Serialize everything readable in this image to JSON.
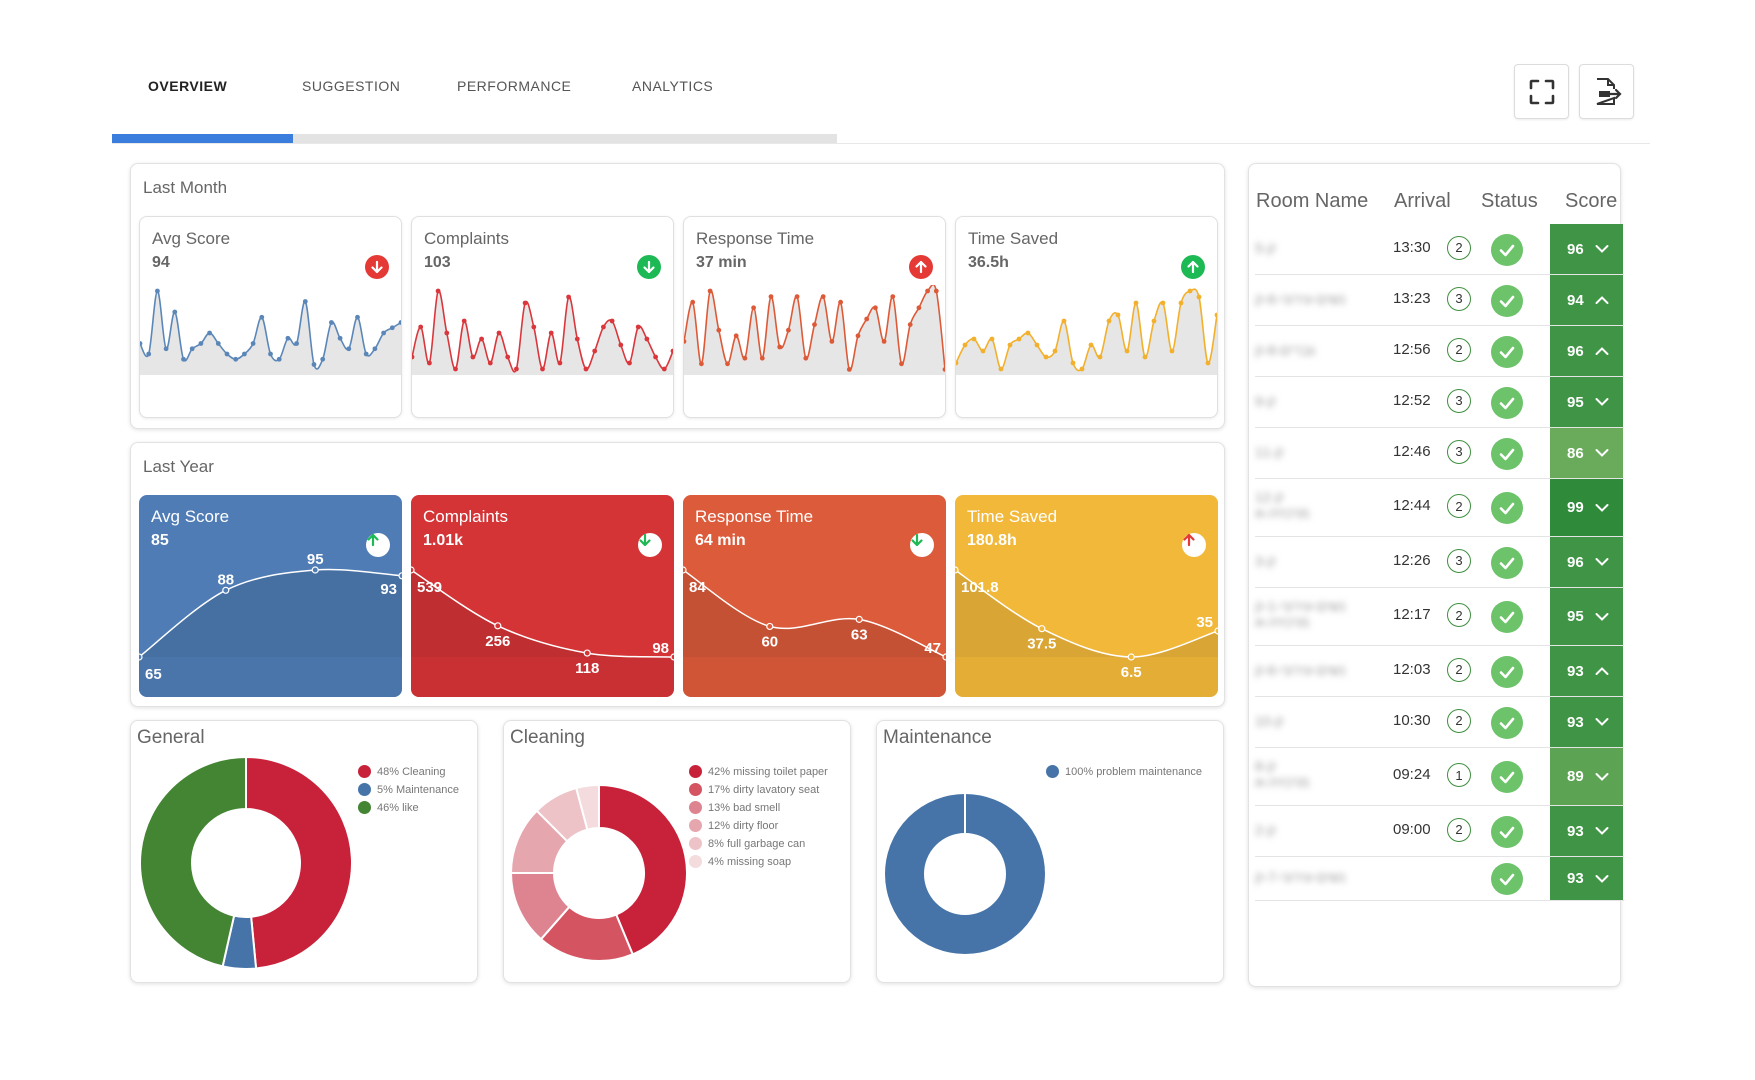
{
  "tabs": [
    {
      "label": "OVERVIEW",
      "active": true
    },
    {
      "label": "SUGGESTION",
      "active": false
    },
    {
      "label": "PERFORMANCE",
      "active": false
    },
    {
      "label": "ANALYTICS",
      "active": false
    }
  ],
  "toolbar": {
    "fullscreen_icon": "fullscreen-icon",
    "export_icon": "pdf-export-icon"
  },
  "last_month": {
    "title": "Last Month",
    "cards": [
      {
        "label": "Avg Score",
        "value": "94",
        "trend": "down",
        "color": "#5b87b8",
        "badge_color": "#e53935",
        "series": [
          6,
          4,
          16,
          5,
          12,
          3,
          5,
          6,
          8,
          6,
          4,
          3,
          4,
          6,
          11,
          4,
          3,
          7,
          6,
          14,
          2,
          3,
          10,
          7,
          5,
          11,
          4,
          5,
          8,
          9,
          10
        ]
      },
      {
        "label": "Complaints",
        "value": "103",
        "trend": "down",
        "color": "#d9373c",
        "badge_color": "#1db954",
        "series": [
          3,
          8,
          2,
          14,
          7,
          1,
          9,
          3,
          6,
          2,
          7,
          3,
          1,
          12,
          8,
          1,
          7,
          2,
          13,
          6,
          1,
          4,
          8,
          9,
          5,
          2,
          8,
          6,
          3,
          1,
          4
        ]
      },
      {
        "label": "Response Time",
        "value": "37 min",
        "trend": "up",
        "color": "#dd5a38",
        "badge_color": "#e53935",
        "series": [
          6,
          13,
          2,
          15,
          8,
          2,
          7,
          3,
          12,
          3,
          14,
          5,
          8,
          14,
          3,
          9,
          14,
          6,
          13,
          1,
          7,
          10,
          12,
          6,
          14,
          2,
          9,
          12,
          15,
          15,
          1
        ]
      },
      {
        "label": "Time Saved",
        "value": "36.5h",
        "trend": "up",
        "color": "#f2b02c",
        "badge_color": "#1db954",
        "series": [
          2,
          5,
          6,
          4,
          6,
          1,
          5,
          6,
          7,
          5,
          3,
          4,
          9,
          2,
          1,
          5,
          3,
          9,
          10,
          4,
          12,
          3,
          9,
          12,
          4,
          12,
          14,
          13,
          2,
          10
        ]
      }
    ]
  },
  "last_year": {
    "title": "Last Year",
    "cards": [
      {
        "label": "Avg Score",
        "value": "85",
        "trend": "up",
        "color": "#4f7cb5",
        "badge_color": "#1db954",
        "points": [
          {
            "label": "65",
            "v": 65
          },
          {
            "label": "88",
            "v": 88
          },
          {
            "label": "95",
            "v": 95
          },
          {
            "label": "93",
            "v": 93
          }
        ]
      },
      {
        "label": "Complaints",
        "value": "1.01k",
        "trend": "down",
        "color": "#d53437",
        "badge_color": "#1db954",
        "points": [
          {
            "label": "539",
            "v": 539
          },
          {
            "label": "256",
            "v": 256
          },
          {
            "label": "118",
            "v": 118
          },
          {
            "label": "98",
            "v": 98
          }
        ]
      },
      {
        "label": "Response Time",
        "value": "64 min",
        "trend": "down",
        "color": "#dc5b3a",
        "badge_color": "#1db954",
        "points": [
          {
            "label": "84",
            "v": 84
          },
          {
            "label": "60",
            "v": 60
          },
          {
            "label": "63",
            "v": 63
          },
          {
            "label": "47",
            "v": 47
          }
        ]
      },
      {
        "label": "Time Saved",
        "value": "180.8h",
        "trend": "up",
        "color": "#f2b83a",
        "badge_color": "#e53935",
        "points": [
          {
            "label": "101.8",
            "v": 101.8
          },
          {
            "label": "37.5",
            "v": 37.5
          },
          {
            "label": "6.5",
            "v": 6.5
          },
          {
            "label": "35",
            "v": 35
          }
        ]
      }
    ]
  },
  "donuts": [
    {
      "title": "General",
      "slices": [
        {
          "label": "48% Cleaning",
          "value": 48,
          "color": "#c8223a"
        },
        {
          "label": "5% Maintenance",
          "value": 5,
          "color": "#4674a8"
        },
        {
          "label": "46% like",
          "value": 46,
          "color": "#438532"
        }
      ]
    },
    {
      "title": "Cleaning",
      "slices": [
        {
          "label": "42% missing toilet paper",
          "value": 42,
          "color": "#c8223a"
        },
        {
          "label": "17% dirty lavatory seat",
          "value": 17,
          "color": "#d55462"
        },
        {
          "label": "13% bad smell",
          "value": 13,
          "color": "#de8491"
        },
        {
          "label": "12% dirty floor",
          "value": 12,
          "color": "#e6a6ae"
        },
        {
          "label": "8% full garbage can",
          "value": 8,
          "color": "#edc3c8"
        },
        {
          "label": "4% missing soap",
          "value": 4,
          "color": "#f3dbde"
        }
      ]
    },
    {
      "title": "Maintenance",
      "slices": [
        {
          "label": "100% problem maintenance",
          "value": 100,
          "color": "#4674a8"
        }
      ]
    }
  ],
  "rooms": {
    "headers": [
      "Room Name",
      "Arrival",
      "Status",
      "Score"
    ],
    "rows": [
      {
        "name": "5-ק",
        "name2": "",
        "arrival": "13:30",
        "count": "2",
        "score": "96",
        "expanded": false,
        "color": "#3f9445"
      },
      {
        "name": "נשים-עירוני-6-ק",
        "name2": "",
        "arrival": "13:23",
        "count": "3",
        "score": "94",
        "expanded": true,
        "color": "#3f9445"
      },
      {
        "name": "גברים-8-ק",
        "name2": "",
        "arrival": "12:56",
        "count": "2",
        "score": "96",
        "expanded": true,
        "color": "#3f9445"
      },
      {
        "name": "9-ק",
        "name2": "",
        "arrival": "12:52",
        "count": "3",
        "score": "95",
        "expanded": false,
        "color": "#3f9445"
      },
      {
        "name": "11-ק",
        "name2": "",
        "arrival": "12:46",
        "count": "3",
        "score": "86",
        "expanded": false,
        "color": "#69ab5b"
      },
      {
        "name": "12-ק",
        "name2": "מרכזיה-א",
        "arrival": "12:44",
        "count": "2",
        "score": "99",
        "expanded": false,
        "color": "#2f8a3a"
      },
      {
        "name": "3-ק",
        "name2": "",
        "arrival": "12:26",
        "count": "3",
        "score": "96",
        "expanded": false,
        "color": "#3f9445"
      },
      {
        "name": "נשים-עירוני-1-ק",
        "name2": "מרכזיה-א",
        "arrival": "12:17",
        "count": "2",
        "score": "95",
        "expanded": false,
        "color": "#3f9445"
      },
      {
        "name": "נשים-עירוני-6-ק",
        "name2": "",
        "arrival": "12:03",
        "count": "2",
        "score": "93",
        "expanded": true,
        "color": "#3f9445"
      },
      {
        "name": "10-ק",
        "name2": "",
        "arrival": "10:30",
        "count": "2",
        "score": "93",
        "expanded": false,
        "color": "#3f9445"
      },
      {
        "name": "8-ק",
        "name2": "מרכזיה-א",
        "arrival": "09:24",
        "count": "1",
        "score": "89",
        "expanded": false,
        "color": "#5da354"
      },
      {
        "name": "2-ק",
        "name2": "",
        "arrival": "09:00",
        "count": "2",
        "score": "93",
        "expanded": false,
        "color": "#3f9445"
      },
      {
        "name": "נשים-עירוני-7-ק",
        "name2": "",
        "arrival": "",
        "count": "",
        "score": "93",
        "expanded": false,
        "color": "#3f9445"
      }
    ]
  }
}
